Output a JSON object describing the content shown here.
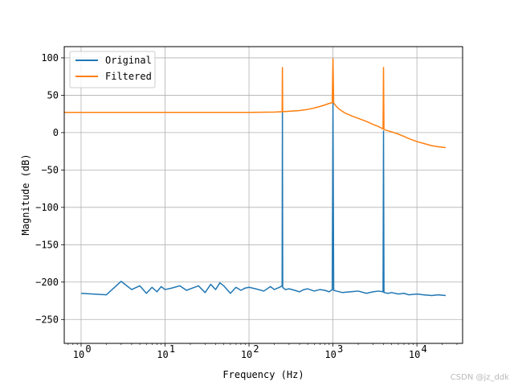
{
  "chart_data": {
    "type": "line",
    "xscale": "log",
    "xlabel": "Frequency (Hz)",
    "ylabel": "Magnitude (dB)",
    "xlim": [
      0.63,
      35000
    ],
    "ylim": [
      -282,
      115
    ],
    "x_ticks": [
      1,
      10,
      100,
      1000,
      10000
    ],
    "x_tick_labels": [
      {
        "base": "10",
        "exp": "0"
      },
      {
        "base": "10",
        "exp": "1"
      },
      {
        "base": "10",
        "exp": "2"
      },
      {
        "base": "10",
        "exp": "3"
      },
      {
        "base": "10",
        "exp": "4"
      }
    ],
    "y_ticks": [
      100,
      50,
      0,
      -50,
      -100,
      -150,
      -200,
      -250
    ],
    "y_tick_labels": [
      "100",
      "50",
      "0",
      "−50",
      "−100",
      "−150",
      "−200",
      "−250"
    ],
    "grid": true,
    "legend_position": "top-left",
    "series": [
      {
        "name": "Original",
        "color": "#1f77b4",
        "x": [
          1,
          2,
          3,
          4,
          5,
          6,
          7,
          8,
          9,
          10,
          12,
          15,
          18,
          20,
          25,
          30,
          35,
          40,
          45,
          50,
          60,
          70,
          80,
          90,
          100,
          120,
          150,
          180,
          200,
          230,
          248,
          250,
          252,
          270,
          300,
          350,
          400,
          450,
          500,
          600,
          700,
          800,
          900,
          980,
          1000,
          1020,
          1100,
          1300,
          1600,
          2000,
          2500,
          3000,
          3500,
          3950,
          4000,
          4050,
          4500,
          5000,
          6000,
          7000,
          8000,
          10000,
          12000,
          15000,
          18000,
          22000
        ],
        "y": [
          -215,
          -217,
          -199,
          -210,
          -205,
          -215,
          -207,
          -213,
          -206,
          -210,
          -208,
          -205,
          -211,
          -209,
          -205,
          -214,
          -203,
          -210,
          -201,
          -205,
          -215,
          -207,
          -211,
          -208,
          -207,
          -209,
          -212,
          -206,
          -210,
          -207,
          -205,
          27,
          -207,
          -210,
          -209,
          -211,
          -213,
          -210,
          -209,
          -212,
          -210,
          -211,
          -213,
          -210,
          39,
          -211,
          -212,
          -214,
          -213,
          -212,
          -215,
          -213,
          -212,
          -213,
          2,
          -214,
          -215,
          -214,
          -216,
          -215,
          -217,
          -216,
          -217,
          -218,
          -217,
          -218
        ]
      },
      {
        "name": "Filtered",
        "color": "#ff7f0e",
        "x": [
          0.63,
          1,
          10,
          100,
          200,
          248,
          250,
          252,
          300,
          400,
          500,
          600,
          700,
          800,
          900,
          980,
          1000,
          1020,
          1100,
          1200,
          1400,
          1700,
          2000,
          2500,
          3000,
          3500,
          3950,
          4000,
          4050,
          4500,
          5000,
          6000,
          7000,
          8000,
          10000,
          12000,
          15000,
          18000,
          22000
        ],
        "y": [
          27,
          27,
          27,
          27,
          27.5,
          28,
          87,
          28,
          28.5,
          29.5,
          31,
          33,
          35,
          37,
          39,
          40,
          99,
          39.5,
          35,
          31,
          26,
          22,
          19,
          15,
          11,
          8,
          5,
          87,
          4,
          2.5,
          1,
          -2,
          -5,
          -8,
          -12,
          -14.5,
          -17.5,
          -19,
          -20
        ]
      }
    ]
  },
  "watermark": "CSDN @jz_ddk"
}
